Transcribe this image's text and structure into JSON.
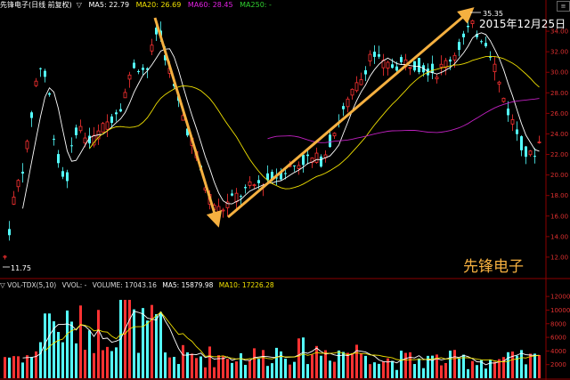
{
  "header": {
    "title": "先锋电子(日线 前复权)",
    "indicator_arrow": "▽",
    "ma": [
      {
        "label": "MA5: 22.79",
        "color": "#ffffff"
      },
      {
        "label": "MA20: 26.69",
        "color": "#f0e000"
      },
      {
        "label": "MA60: 28.45",
        "color": "#e020e0"
      },
      {
        "label": "MA250: -",
        "color": "#30d030"
      }
    ]
  },
  "corner_button": "≡",
  "price_axis": {
    "ticks": [
      "34.00",
      "32.00",
      "30.00",
      "28.00",
      "26.00",
      "24.00",
      "22.00",
      "20.00",
      "18.00",
      "16.00",
      "14.00",
      "12.00"
    ],
    "color": "#e03030"
  },
  "annotations": {
    "high_label": "35.35",
    "low_label": "11.75",
    "date_label": "2015年12月25日",
    "watermark": "先锋电子"
  },
  "volume": {
    "header": [
      {
        "label": "▽ VOL-TDX(5,10)",
        "color": "#dddddd"
      },
      {
        "label": "VVOL: -",
        "color": "#dddddd"
      },
      {
        "label": "VOLUME: 17043.16",
        "color": "#dddddd"
      },
      {
        "label": "MA5: 15879.98",
        "color": "#ffffff"
      },
      {
        "label": "MA10: 17226.28",
        "color": "#f0e000"
      }
    ],
    "ticks": [
      "12000",
      "10000",
      "8000",
      "6000",
      "4000",
      "2000"
    ]
  },
  "colors": {
    "up": "#ff3232",
    "down": "#54ffff",
    "ma5": "#ffffff",
    "ma20": "#f0e000",
    "ma60": "#c020c0",
    "arrow": "#f5b040",
    "axis": "#8b0000"
  }
}
